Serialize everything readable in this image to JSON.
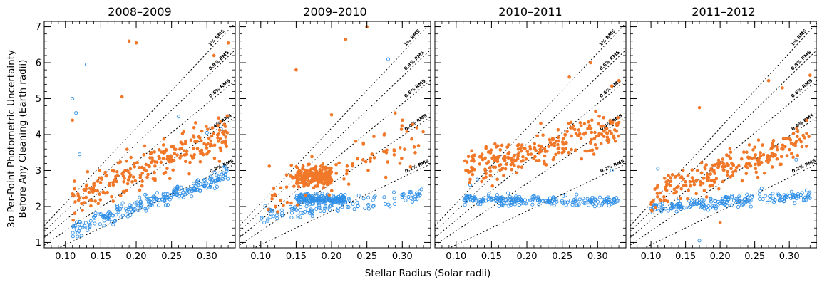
{
  "chart_data": {
    "type": "scatter",
    "xlabel": "Stellar Radius (Solar radii)",
    "ylabel_line1": "3σ Per-Point Photometric Uncertainty",
    "ylabel_line2": "Before Any Cleaning  (Earth radii)",
    "xlim": [
      0.07,
      0.34
    ],
    "ylim": [
      0.85,
      7.15
    ],
    "x_ticks": [
      "0.10",
      "0.15",
      "0.20",
      "0.25",
      "0.30"
    ],
    "y_ticks": [
      "1",
      "2",
      "3",
      "4",
      "5",
      "6",
      "7"
    ],
    "colors": {
      "orange": "#f07828",
      "blue": "#2f8fe6",
      "reference": "#000000"
    },
    "reference_lines": [
      {
        "label": "0.2% RMS",
        "slope": 9.35
      },
      {
        "label": "0.4% RMS",
        "slope": 13.2
      },
      {
        "label": "0.6% RMS",
        "slope": 16.2
      },
      {
        "label": "0.8% RMS",
        "slope": 18.7
      },
      {
        "label": "1% RMS",
        "slope": 20.9
      }
    ],
    "panels": [
      {
        "title": "2008–2009",
        "orange_clusters": [
          {
            "x": [
              0.11,
              0.33
            ],
            "y0": 2.2,
            "slope": 8.5,
            "spread": 0.55,
            "n": 260
          }
        ],
        "orange_outliers": [
          [
            0.19,
            6.6
          ],
          [
            0.2,
            6.55
          ],
          [
            0.18,
            5.05
          ],
          [
            0.11,
            4.4
          ],
          [
            0.33,
            6.55
          ],
          [
            0.31,
            6.2
          ]
        ],
        "blue_clusters": [
          {
            "x": [
              0.11,
              0.33
            ],
            "y0": 1.35,
            "slope": 7.0,
            "spread": 0.22,
            "n": 240
          }
        ],
        "blue_outliers": [
          [
            0.13,
            5.95
          ],
          [
            0.11,
            5.0
          ],
          [
            0.115,
            4.6
          ],
          [
            0.12,
            3.45
          ],
          [
            0.26,
            4.5
          ],
          [
            0.3,
            4.05
          ],
          [
            0.32,
            4.15
          ]
        ]
      },
      {
        "title": "2009–2010",
        "orange_clusters": [
          {
            "x": [
              0.15,
              0.2
            ],
            "y0": 2.85,
            "slope": 0.0,
            "spread": 0.28,
            "n": 200
          },
          {
            "x": [
              0.11,
              0.33
            ],
            "y0": 2.3,
            "slope": 7.5,
            "spread": 0.7,
            "n": 90
          }
        ],
        "orange_outliers": [
          [
            0.25,
            7.0
          ],
          [
            0.22,
            6.65
          ],
          [
            0.15,
            5.8
          ],
          [
            0.2,
            4.55
          ],
          [
            0.29,
            4.6
          ],
          [
            0.3,
            4.4
          ]
        ],
        "blue_clusters": [
          {
            "x": [
              0.15,
              0.22
            ],
            "y0": 2.2,
            "slope": 0.0,
            "spread": 0.13,
            "n": 200
          },
          {
            "x": [
              0.1,
              0.33
            ],
            "y0": 1.75,
            "slope": 2.5,
            "spread": 0.2,
            "n": 120
          }
        ],
        "blue_outliers": [
          [
            0.28,
            6.1
          ],
          [
            0.11,
            1.6
          ],
          [
            0.105,
            1.55
          ],
          [
            0.31,
            2.4
          ]
        ]
      },
      {
        "title": "2010–2011",
        "orange_clusters": [
          {
            "x": [
              0.11,
              0.33
            ],
            "y0": 3.0,
            "slope": 5.5,
            "spread": 0.5,
            "n": 260
          }
        ],
        "orange_outliers": [
          [
            0.29,
            6.0
          ],
          [
            0.32,
            5.35
          ],
          [
            0.33,
            5.5
          ],
          [
            0.26,
            5.6
          ]
        ],
        "blue_clusters": [
          {
            "x": [
              0.11,
              0.33
            ],
            "y0": 2.2,
            "slope": -0.3,
            "spread": 0.13,
            "n": 230
          }
        ],
        "blue_outliers": [
          [
            0.12,
            2.6
          ],
          [
            0.13,
            2.75
          ],
          [
            0.32,
            3.0
          ]
        ]
      },
      {
        "title": "2011–2012",
        "orange_clusters": [
          {
            "x": [
              0.1,
              0.33
            ],
            "y0": 2.3,
            "slope": 7.0,
            "spread": 0.45,
            "n": 230
          }
        ],
        "orange_outliers": [
          [
            0.17,
            4.75
          ],
          [
            0.27,
            5.5
          ],
          [
            0.33,
            5.65
          ],
          [
            0.2,
            1.55
          ],
          [
            0.29,
            5.3
          ]
        ],
        "blue_clusters": [
          {
            "x": [
              0.1,
              0.33
            ],
            "y0": 1.95,
            "slope": 1.6,
            "spread": 0.16,
            "n": 220
          }
        ],
        "blue_outliers": [
          [
            0.11,
            3.05
          ],
          [
            0.17,
            1.05
          ],
          [
            0.26,
            2.5
          ],
          [
            0.31,
            3.3
          ]
        ]
      }
    ]
  }
}
